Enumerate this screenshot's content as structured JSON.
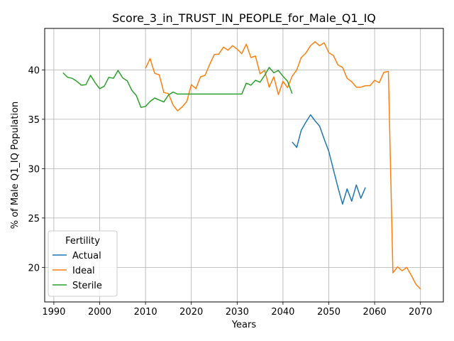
{
  "chart_data": {
    "type": "line",
    "title": "Score_3_in_TRUST_IN_PEOPLE_for_Male_Q1_IQ",
    "xlabel": "Years",
    "ylabel": "% of Male Q1_IQ Population",
    "xlim": [
      1988,
      2075
    ],
    "ylim": [
      16.5,
      44.2
    ],
    "xticks": [
      1990,
      2000,
      2010,
      2020,
      2030,
      2040,
      2050,
      2060,
      2070
    ],
    "yticks": [
      20,
      25,
      30,
      35,
      40
    ],
    "grid": true,
    "legend": {
      "title": "Fertility",
      "placement": "bottom-left"
    },
    "series": [
      {
        "name": "Actual",
        "color": "#1f77b4",
        "x": [
          2042,
          2043,
          2044,
          2045,
          2046,
          2047,
          2048,
          2049,
          2050,
          2051,
          2052,
          2053,
          2054,
          2055,
          2056,
          2057,
          2058
        ],
        "y": [
          32.7,
          32.15,
          33.9,
          34.7,
          35.45,
          34.85,
          34.3,
          33.0,
          31.75,
          29.9,
          28.1,
          26.4,
          27.95,
          26.7,
          28.35,
          27.0,
          28.1
        ]
      },
      {
        "name": "Ideal",
        "color": "#ff7f0e",
        "x": [
          2010,
          2011,
          2012,
          2013,
          2014,
          2015,
          2016,
          2017,
          2018,
          2019,
          2020,
          2021,
          2022,
          2023,
          2024,
          2025,
          2026,
          2027,
          2028,
          2029,
          2030,
          2031,
          2032,
          2033,
          2034,
          2035,
          2036,
          2037,
          2038,
          2039,
          2040,
          2041,
          2042,
          2043,
          2044,
          2045,
          2046,
          2047,
          2048,
          2049,
          2050,
          2051,
          2052,
          2053,
          2054,
          2055,
          2056,
          2057,
          2058,
          2059,
          2060,
          2061,
          2062,
          2063,
          2064,
          2065,
          2066,
          2067,
          2068,
          2069,
          2070
        ],
        "y": [
          40.15,
          41.15,
          39.65,
          39.5,
          37.7,
          37.6,
          36.45,
          35.85,
          36.25,
          36.8,
          38.5,
          38.1,
          39.3,
          39.45,
          40.55,
          41.55,
          41.6,
          42.3,
          42.0,
          42.45,
          42.1,
          41.65,
          42.6,
          41.25,
          41.4,
          39.6,
          39.95,
          38.25,
          39.3,
          37.5,
          38.85,
          38.2,
          39.35,
          40.0,
          41.25,
          41.7,
          42.45,
          42.85,
          42.45,
          42.75,
          41.75,
          41.45,
          40.5,
          40.25,
          39.15,
          38.8,
          38.25,
          38.25,
          38.4,
          38.4,
          38.95,
          38.7,
          39.75,
          39.85,
          19.45,
          20.05,
          19.65,
          20.0,
          19.2,
          18.3,
          17.8
        ]
      },
      {
        "name": "Sterile",
        "color": "#2ca02c",
        "x": [
          1992,
          1993,
          1994,
          1995,
          1996,
          1997,
          1998,
          1999,
          2000,
          2001,
          2002,
          2003,
          2004,
          2005,
          2006,
          2007,
          2008,
          2009,
          2010,
          2011,
          2012,
          2013,
          2014,
          2015,
          2016,
          2017,
          2018,
          2019,
          2020,
          2021,
          2022,
          2023,
          2024,
          2025,
          2026,
          2027,
          2028,
          2029,
          2030,
          2031,
          2032,
          2033,
          2034,
          2035,
          2036,
          2037,
          2038,
          2039,
          2040,
          2041,
          2042
        ],
        "y": [
          39.7,
          39.25,
          39.15,
          38.85,
          38.45,
          38.5,
          39.45,
          38.7,
          38.1,
          38.35,
          39.25,
          39.15,
          39.95,
          39.2,
          38.9,
          37.95,
          37.4,
          36.2,
          36.3,
          36.8,
          37.15,
          36.95,
          36.75,
          37.45,
          37.75,
          37.55,
          37.55,
          37.55,
          37.55,
          37.55,
          37.55,
          37.55,
          37.55,
          37.55,
          37.55,
          37.55,
          37.55,
          37.55,
          37.55,
          37.55,
          38.65,
          38.45,
          38.95,
          38.75,
          39.45,
          40.25,
          39.7,
          39.95,
          39.35,
          38.85,
          37.6
        ]
      }
    ]
  }
}
